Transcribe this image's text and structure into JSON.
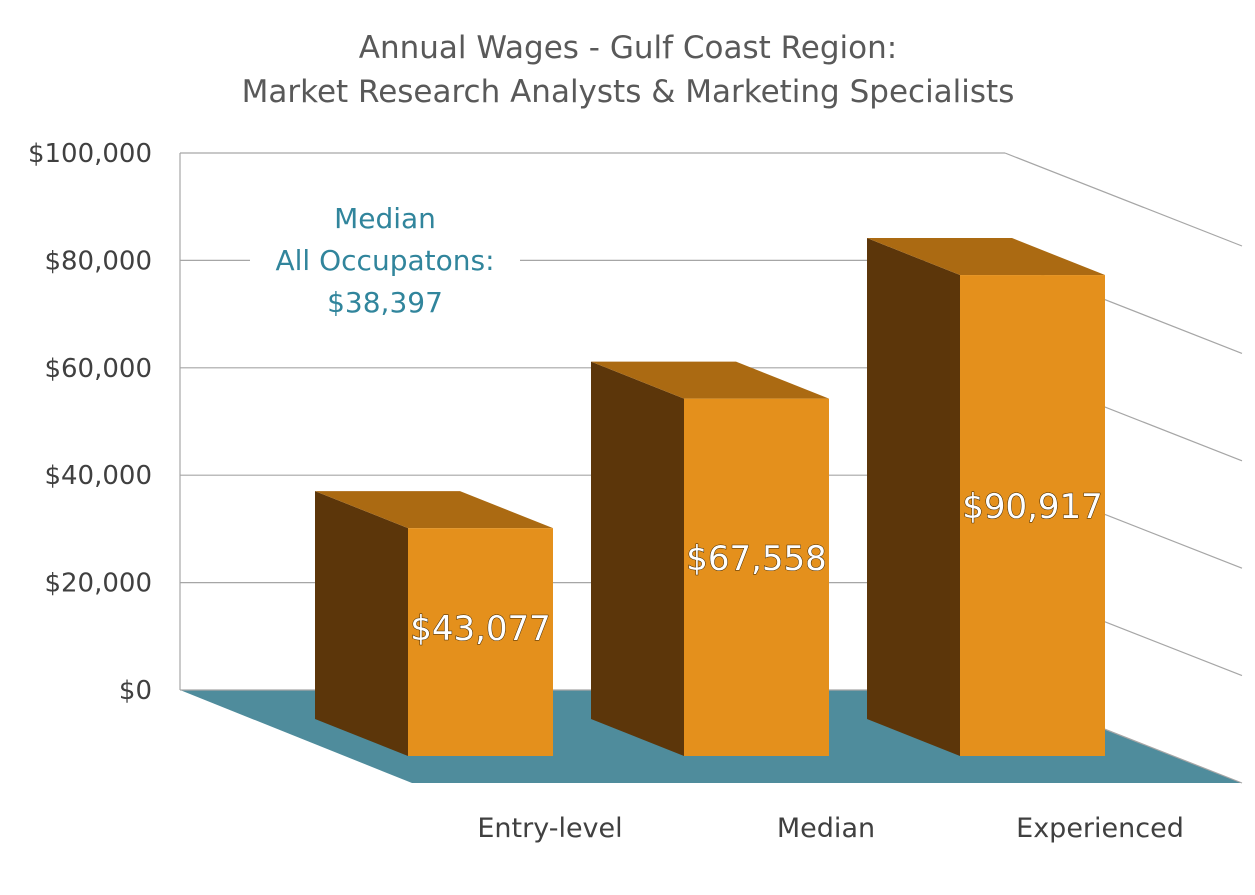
{
  "chart_data": {
    "type": "bar",
    "title": [
      "Annual Wages - Gulf Coast Region:",
      "Market Research Analysts & Marketing Specialists"
    ],
    "categories": [
      "Entry-level",
      "Median",
      "Experienced"
    ],
    "values": [
      43077,
      67558,
      90917
    ],
    "value_labels": [
      "$43,077",
      "$67,558",
      "$90,917"
    ],
    "ylim": [
      0,
      100000
    ],
    "yticks": [
      0,
      20000,
      40000,
      60000,
      80000,
      100000
    ],
    "ytick_labels": [
      "$0",
      "$20,000",
      "$40,000",
      "$60,000",
      "$80,000",
      "$100,000"
    ],
    "grid": true,
    "style": "3d-column",
    "annotation": [
      "Median",
      "All Occupatons:",
      "$38,397"
    ],
    "colors": {
      "bar_front": "#e4901c",
      "bar_side": "#5c360a",
      "bar_top": "#ab6a12",
      "floor": "#4f8c9c",
      "annotation": "#31859c",
      "grid": "#a6a6a6"
    }
  }
}
